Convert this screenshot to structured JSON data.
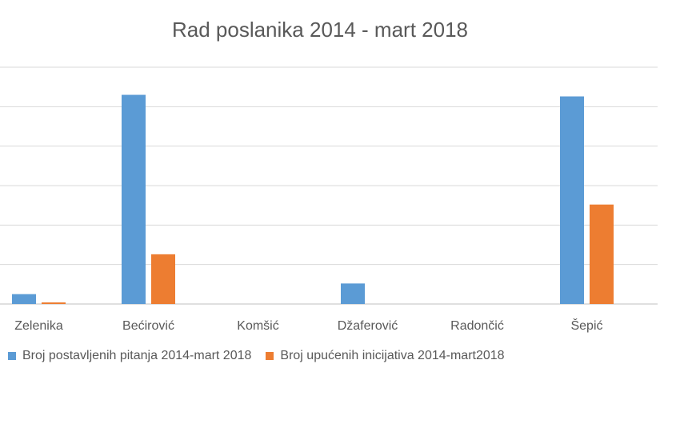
{
  "chart_data": {
    "type": "bar",
    "title": "Rad poslanika 2014 - mart 2018",
    "xlabel": "",
    "ylabel": "",
    "categories": [
      "Zelenika",
      "Bećirović",
      "Komšić",
      "Džaferović",
      "Radončić",
      "Šepić"
    ],
    "series": [
      {
        "name": "Broj postavljenih pitanja 2014-mart 2018",
        "color": "#5B9BD5",
        "values": [
          2.5,
          53,
          0,
          5.2,
          0,
          52.6
        ]
      },
      {
        "name": "Broj upućenih inicijativa 2014-mart2018",
        "color": "#ED7D31",
        "values": [
          0.4,
          12.6,
          0,
          0,
          0,
          25.2
        ]
      }
    ],
    "ylim": [
      0,
      60
    ],
    "grid": true,
    "legend_position": "bottom"
  }
}
